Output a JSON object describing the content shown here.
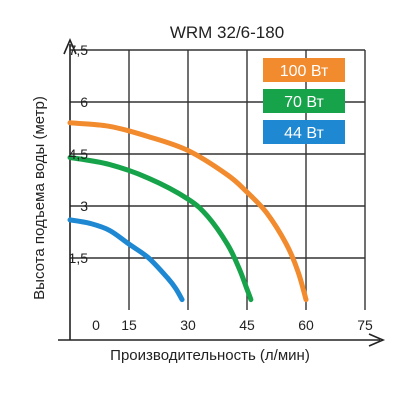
{
  "chart_data": {
    "type": "line",
    "title": "WRM 32/6-180",
    "xlabel": "Производительность (л/мин)",
    "ylabel": "Высота подъема воды (метр)",
    "xlim": [
      0,
      75
    ],
    "ylim": [
      0,
      7.5
    ],
    "x_ticks": [
      "0",
      "15",
      "30",
      "45",
      "60",
      "75"
    ],
    "y_ticks": [
      "1,5",
      "3",
      "4,5",
      "6",
      "7,5"
    ],
    "grid": true,
    "legend_position": "top-right",
    "series": [
      {
        "name": "100 Вт",
        "color": "#F28A2E",
        "x": [
          0,
          10,
          20,
          30,
          40,
          45,
          50,
          55,
          58,
          60
        ],
        "y": [
          5.4,
          5.3,
          5.0,
          4.6,
          3.9,
          3.4,
          2.8,
          1.9,
          1.1,
          0.3
        ]
      },
      {
        "name": "70 Вт",
        "color": "#17A34A",
        "x": [
          0,
          10,
          20,
          30,
          35,
          40,
          43,
          45,
          46
        ],
        "y": [
          4.4,
          4.2,
          3.8,
          3.2,
          2.7,
          1.9,
          1.2,
          0.6,
          0.3
        ]
      },
      {
        "name": "44 Вт",
        "color": "#1E88D2",
        "x": [
          0,
          5,
          10,
          15,
          20,
          25,
          27,
          28.5
        ],
        "y": [
          2.6,
          2.5,
          2.3,
          1.9,
          1.5,
          0.9,
          0.6,
          0.3
        ]
      }
    ]
  }
}
